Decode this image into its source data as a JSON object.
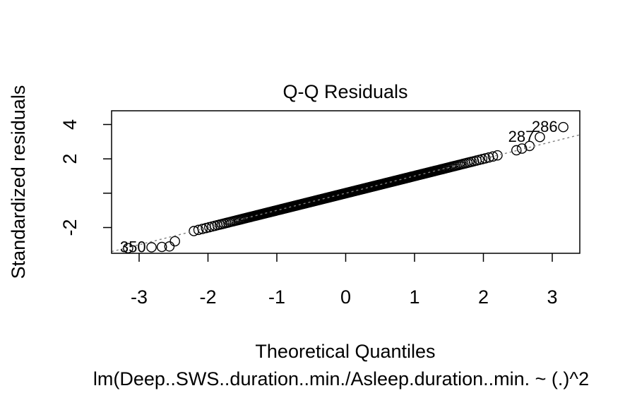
{
  "chart_data": {
    "type": "scatter",
    "title": "Q-Q Residuals",
    "xlabel": "Theoretical Quantiles",
    "ylabel": "Standardized residuals",
    "subtitle": "lm(Deep..SWS..duration..min./Asleep.duration..min. ~ (.)^2",
    "xlim": [
      -3.4,
      3.4
    ],
    "ylim": [
      -3.5,
      4.8
    ],
    "x_ticks": [
      -3,
      -2,
      -1,
      0,
      1,
      2,
      3
    ],
    "x_tick_labels": [
      "-3",
      "-2",
      "-1",
      "0",
      "1",
      "2",
      "3"
    ],
    "y_ticks": [
      -2,
      0,
      2,
      4
    ],
    "y_tick_labels": [
      "-2",
      "",
      "2",
      "4"
    ],
    "grid": false,
    "reference_line": {
      "slope": 1.0,
      "intercept": 0.0,
      "style": "dotted",
      "color": "#7f7f7f"
    },
    "n_points": 400,
    "upper_tail": [
      {
        "x": 3.16,
        "y": 3.85
      },
      {
        "x": 2.82,
        "y": 3.27
      },
      {
        "x": 2.67,
        "y": 2.75
      },
      {
        "x": 2.56,
        "y": 2.6
      },
      {
        "x": 2.48,
        "y": 2.5
      }
    ],
    "lower_tail": [
      {
        "x": -3.16,
        "y": -3.2
      },
      {
        "x": -2.82,
        "y": -3.15
      },
      {
        "x": -2.67,
        "y": -3.13
      },
      {
        "x": -2.56,
        "y": -3.1
      },
      {
        "x": -2.48,
        "y": -2.8
      }
    ],
    "annotations": [
      {
        "text": "286",
        "x": 3.16,
        "y": 3.85,
        "position": "left"
      },
      {
        "text": "287",
        "x": 2.82,
        "y": 3.27,
        "position": "left"
      },
      {
        "text": "350",
        "x": -2.82,
        "y": -3.15,
        "position": "left"
      }
    ],
    "colors": {
      "points": "#000000",
      "reference_line": "#7f7f7f",
      "frame": "#000000"
    }
  }
}
